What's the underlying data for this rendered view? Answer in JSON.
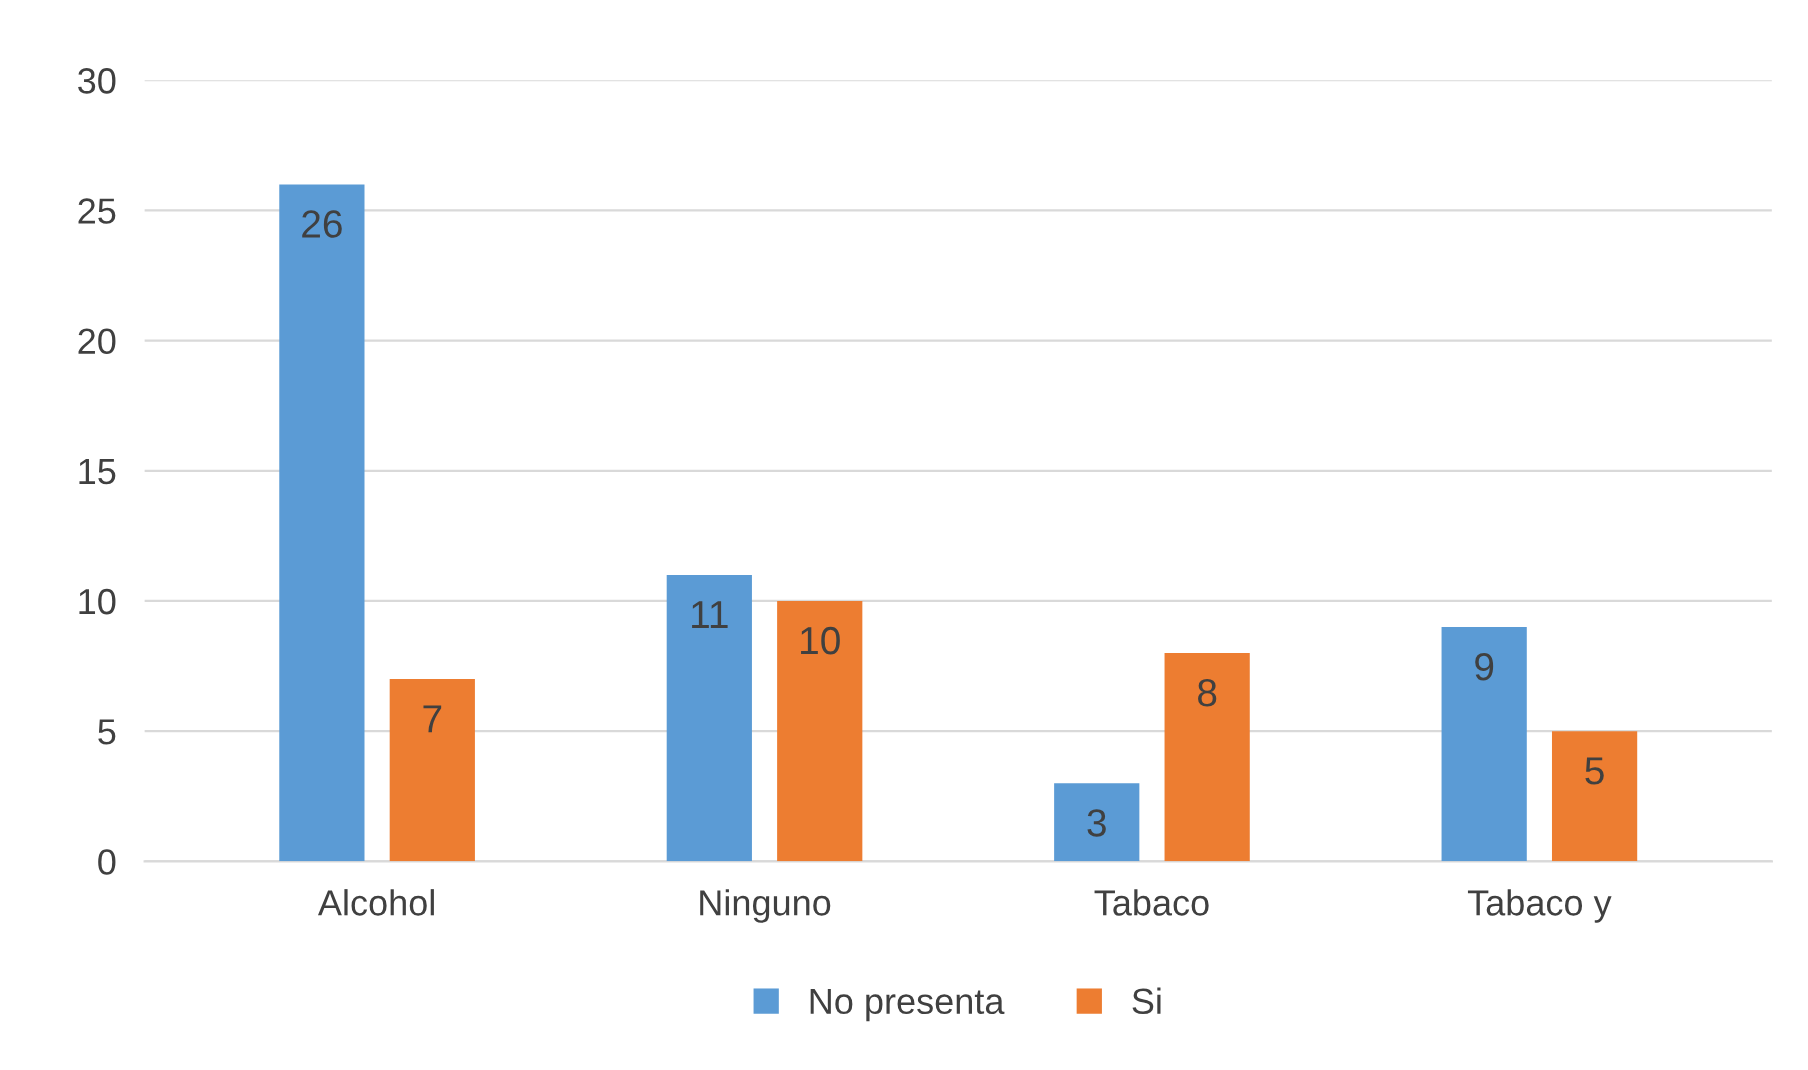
{
  "chart_data": {
    "type": "bar",
    "categories": [
      "Alcohol",
      "Ninguno",
      "Tabaco",
      "Tabaco y"
    ],
    "series": [
      {
        "name": "No presenta",
        "color": "#5b9bd5",
        "values": [
          26,
          11,
          3,
          9
        ]
      },
      {
        "name": "Si",
        "color": "#ed7d31",
        "values": [
          7,
          10,
          8,
          5
        ]
      }
    ],
    "ylim": [
      0,
      30
    ],
    "yticks": [
      0,
      5,
      10,
      15,
      20,
      25,
      30
    ],
    "grid": "y",
    "legend": "bottom",
    "data_labels": true
  }
}
